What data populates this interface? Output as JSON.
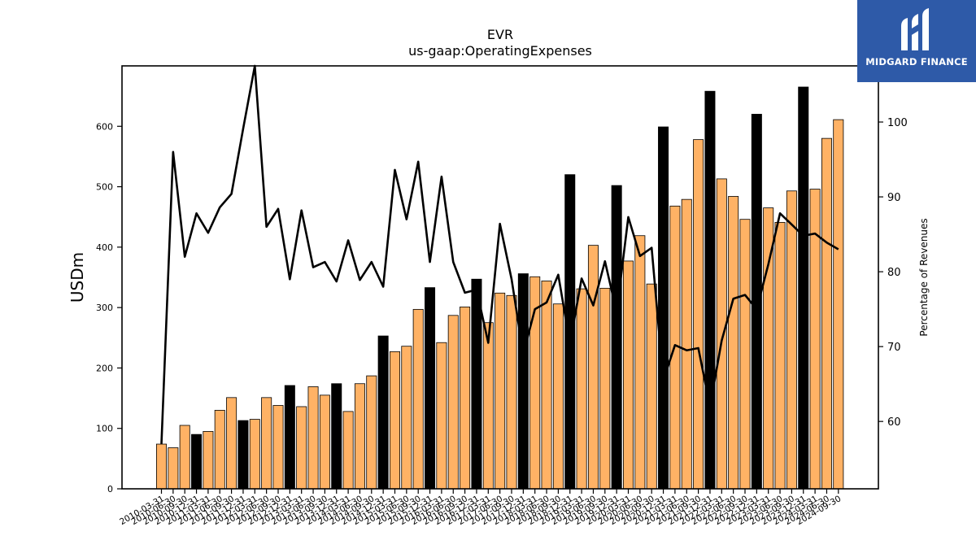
{
  "chart_data": {
    "type": "bar",
    "title": "EVR",
    "subtitle": "us-gaap:OperatingExpenses",
    "ylabel": "USDm",
    "y2label": "Percentage of Revenues",
    "ylim": [
      0,
      700
    ],
    "y2lim": [
      51,
      107.5
    ],
    "yticks": [
      0,
      100,
      200,
      300,
      400,
      500,
      600
    ],
    "y2ticks": [
      60,
      70,
      80,
      90,
      100
    ],
    "colors": {
      "quarter": "#ffb265",
      "annual": "#000000",
      "line": "#000000"
    },
    "categories": [
      "2010-03-31",
      "2010-06-30",
      "2010-09-30",
      "2010-12-31",
      "2011-03-31",
      "2011-06-30",
      "2011-09-30",
      "2011-12-31",
      "2012-03-31",
      "2012-06-30",
      "2012-09-30",
      "2012-12-31",
      "2013-03-31",
      "2013-06-30",
      "2013-09-30",
      "2013-12-31",
      "2014-03-31",
      "2014-06-30",
      "2014-09-30",
      "2014-12-31",
      "2015-03-31",
      "2015-06-30",
      "2015-09-30",
      "2015-12-31",
      "2016-03-31",
      "2016-06-30",
      "2016-09-30",
      "2016-12-31",
      "2017-03-31",
      "2017-06-30",
      "2017-09-30",
      "2017-12-31",
      "2018-03-31",
      "2018-06-30",
      "2018-09-30",
      "2018-12-31",
      "2019-03-31",
      "2019-06-30",
      "2019-09-30",
      "2019-12-31",
      "2020-03-31",
      "2020-06-30",
      "2020-09-30",
      "2020-12-31",
      "2021-03-31",
      "2021-06-30",
      "2021-09-30",
      "2021-12-31",
      "2022-03-31",
      "2022-06-30",
      "2022-09-30",
      "2022-12-31",
      "2023-03-31",
      "2023-06-30",
      "2023-09-30",
      "2023-12-31",
      "2024-03-31",
      "2024-06-30",
      "2024-09-30"
    ],
    "xtick_labels": [
      "2010-03-31",
      "2010-06-30",
      "2010-09-30",
      "2010-12-31",
      "2011-03-31",
      "2011-06-30",
      "2011-09-30",
      "2011-12-31",
      "2012-03-31",
      "2012-06-30",
      "2012-09-30",
      "2012-12-31",
      "2013-03-31",
      "2013-06-30",
      "2013-09-30",
      "2013-12-31",
      "2014-03-31",
      "2014-06-30",
      "2014-09-30",
      "2014-12-31",
      "2015-03-31",
      "2015-06-30",
      "2015-09-30",
      "2015-12-31",
      "2016-03-31",
      "2016-06-30",
      "2016-09-30",
      "2016-12-31",
      "2017-03-31",
      "2017-06-30",
      "2017-09-30",
      "2017-12-31",
      "2018-03-31",
      "2018-06-30",
      "2018-09-30",
      "2018-12-31",
      "2019-03-31",
      "2019-06-30",
      "2019-09-30",
      "2019-12-31",
      "2020-03-31",
      "2020-06-30",
      "2020-09-30",
      "2020-12-31",
      "2021-03-31",
      "2021-06-30",
      "2021-09-30",
      "2021-12-31",
      "2022-03-31",
      "2022-06-30",
      "2022-09-30",
      "2022-12-31",
      "2023-03-31",
      "2023-06-30",
      "2023-09-30",
      "2023-12-31",
      "2024-03-31",
      "2024-06-30",
      "2024-09-30"
    ],
    "series": [
      {
        "kind": "bar",
        "values": [
          74,
          68,
          105,
          90,
          95,
          130,
          151,
          113,
          115,
          151,
          138,
          171,
          136,
          169,
          155,
          174,
          128,
          174,
          187,
          253,
          227,
          236,
          297,
          333,
          242,
          287,
          301,
          347,
          275,
          324,
          320,
          356,
          351,
          344,
          306,
          520,
          331,
          403,
          332,
          502,
          377,
          419,
          339,
          599,
          468,
          479,
          578,
          658,
          513,
          484,
          446,
          620,
          465,
          441,
          493,
          665,
          496,
          580,
          611
        ],
        "annual": [
          false,
          false,
          false,
          true,
          false,
          false,
          false,
          true,
          false,
          false,
          false,
          true,
          false,
          false,
          false,
          true,
          false,
          false,
          false,
          true,
          false,
          false,
          false,
          true,
          false,
          false,
          false,
          true,
          false,
          false,
          false,
          true,
          false,
          false,
          false,
          true,
          false,
          false,
          false,
          true,
          false,
          false,
          false,
          true,
          false,
          false,
          false,
          true,
          false,
          false,
          false,
          true,
          false,
          false,
          false,
          true,
          false,
          false,
          false
        ]
      },
      {
        "kind": "line",
        "axis": "right",
        "values": [
          57,
          96,
          82,
          87.8,
          85.2,
          88.6,
          90.4,
          99.1,
          107.5,
          86,
          88.4,
          79,
          88.2,
          80.6,
          81.3,
          78.7,
          84.2,
          78.9,
          81.3,
          78,
          93.6,
          87,
          94.7,
          81.3,
          92.7,
          81.3,
          77.2,
          77.6,
          70.5,
          86.4,
          79,
          69,
          75,
          75.9,
          79.6,
          70.4,
          79.1,
          75.5,
          81.4,
          74.6,
          87.3,
          82.1,
          83.2,
          65.5,
          70.2,
          69.5,
          69.8,
          62,
          70.8,
          76.4,
          76.9,
          75,
          81,
          87.8,
          86.3,
          84.8,
          85.1,
          83.9,
          83
        ]
      }
    ]
  },
  "branding": {
    "logo_text": "MIDGARD FINANCE",
    "logo_icon": "midgard-m-icon",
    "logo_color": "#2e5aa8"
  }
}
